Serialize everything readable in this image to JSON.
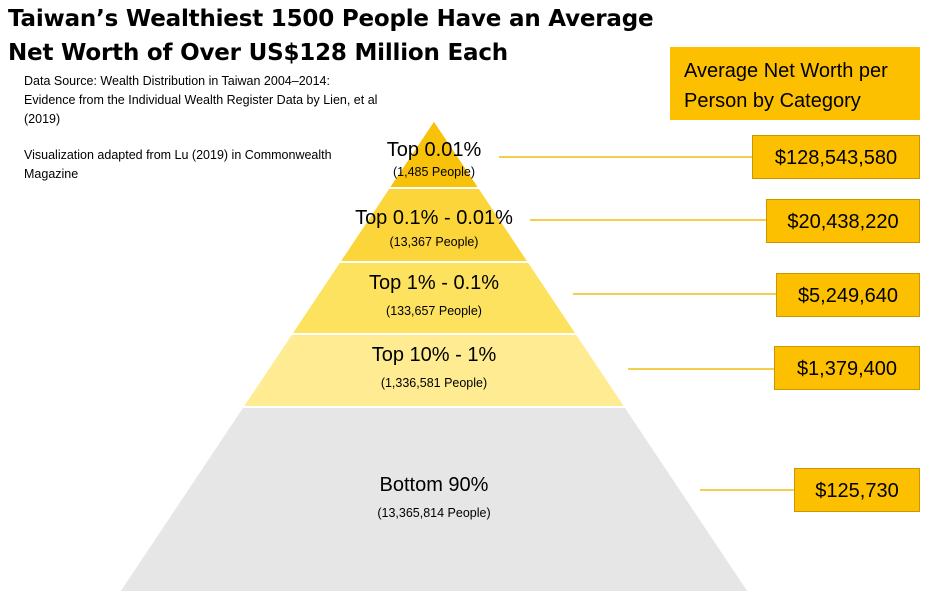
{
  "title_lines": [
    "Taiwan’s Wealthiest 1500 People Have an Average",
    "Net Worth of Over US$128 Million Each"
  ],
  "source": {
    "line1": "Data Source: Wealth Distribution in Taiwan 2004–2014: Evidence from the Individual Wealth Register Data by Lien, et al (2019)",
    "line2": "Visualization adapted from Lu (2019) in Commonwealth Magazine"
  },
  "value_header_lines": [
    "Average Net Worth per",
    "Person by Category"
  ],
  "colors": {
    "accent": "#fdc000",
    "tiers": [
      "#f8c20a",
      "#fcd53a",
      "#fde25f",
      "#feeb92",
      "#e6e6e6"
    ],
    "connector": "#f2be13"
  },
  "chart_data": {
    "type": "pyramid",
    "title": "Taiwan’s Wealthiest 1500 People Have an Average Net Worth of Over US$128 Million Each",
    "categories": [
      "Top 0.01%",
      "Top 0.1% - 0.01%",
      "Top 1% - 0.1%",
      "Top 10% - 1%",
      "Bottom 90%"
    ],
    "people": [
      "(1,485 People)",
      "(13,367 People)",
      "(133,657 People)",
      "(1,336,581 People)",
      "(13,365,814 People)"
    ],
    "values": [
      128543580,
      20438220,
      5249640,
      1379400,
      125730
    ],
    "value_labels": [
      "$128,543,580",
      "$20,438,220",
      "$5,249,640",
      "$1,379,400",
      "$125,730"
    ],
    "series": [
      {
        "name": "Average Net Worth per Person by Category",
        "values": [
          128543580,
          20438220,
          5249640,
          1379400,
          125730
        ]
      }
    ]
  }
}
